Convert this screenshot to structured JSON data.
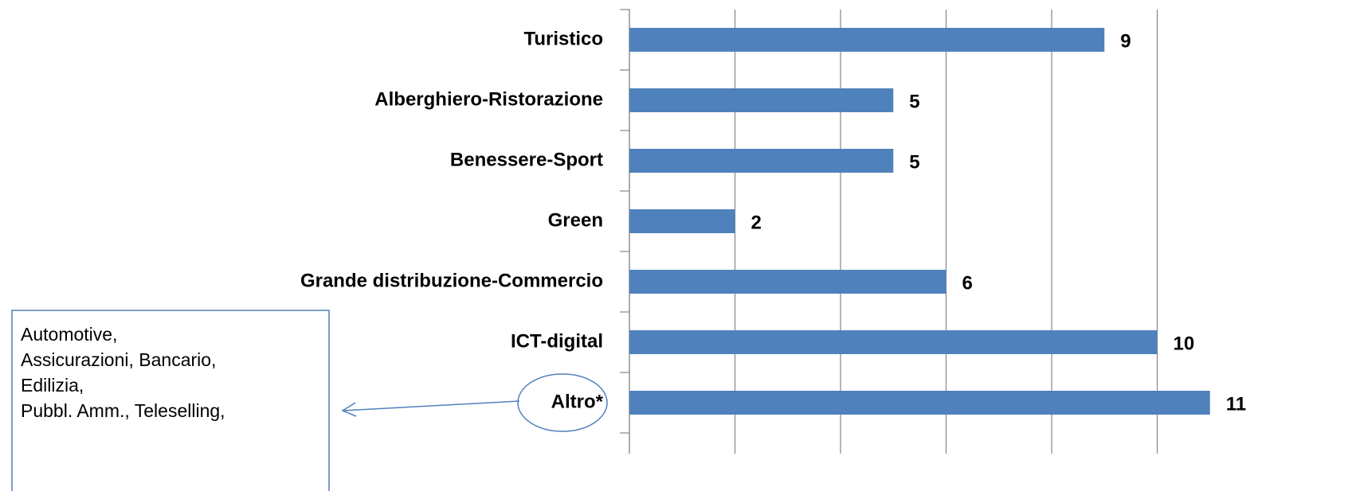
{
  "chart_data": {
    "type": "bar",
    "orientation": "horizontal",
    "categories": [
      "Turistico",
      "Alberghiero-Ristorazione",
      "Benessere-Sport",
      "Green",
      "Grande distribuzione-Commercio",
      "ICT-digital",
      "Altro*"
    ],
    "values": [
      9,
      5,
      5,
      2,
      6,
      10,
      11
    ],
    "color": "#4f81bd",
    "xlim": [
      0,
      12
    ],
    "xticks": [
      0,
      2,
      4,
      6,
      8,
      10
    ],
    "grid": true,
    "annotation": {
      "lines": [
        "Automotive,",
        "Assicurazioni, Bancario,",
        "Edilizia,",
        "Pubbl. Amm., Teleselling,"
      ]
    }
  }
}
